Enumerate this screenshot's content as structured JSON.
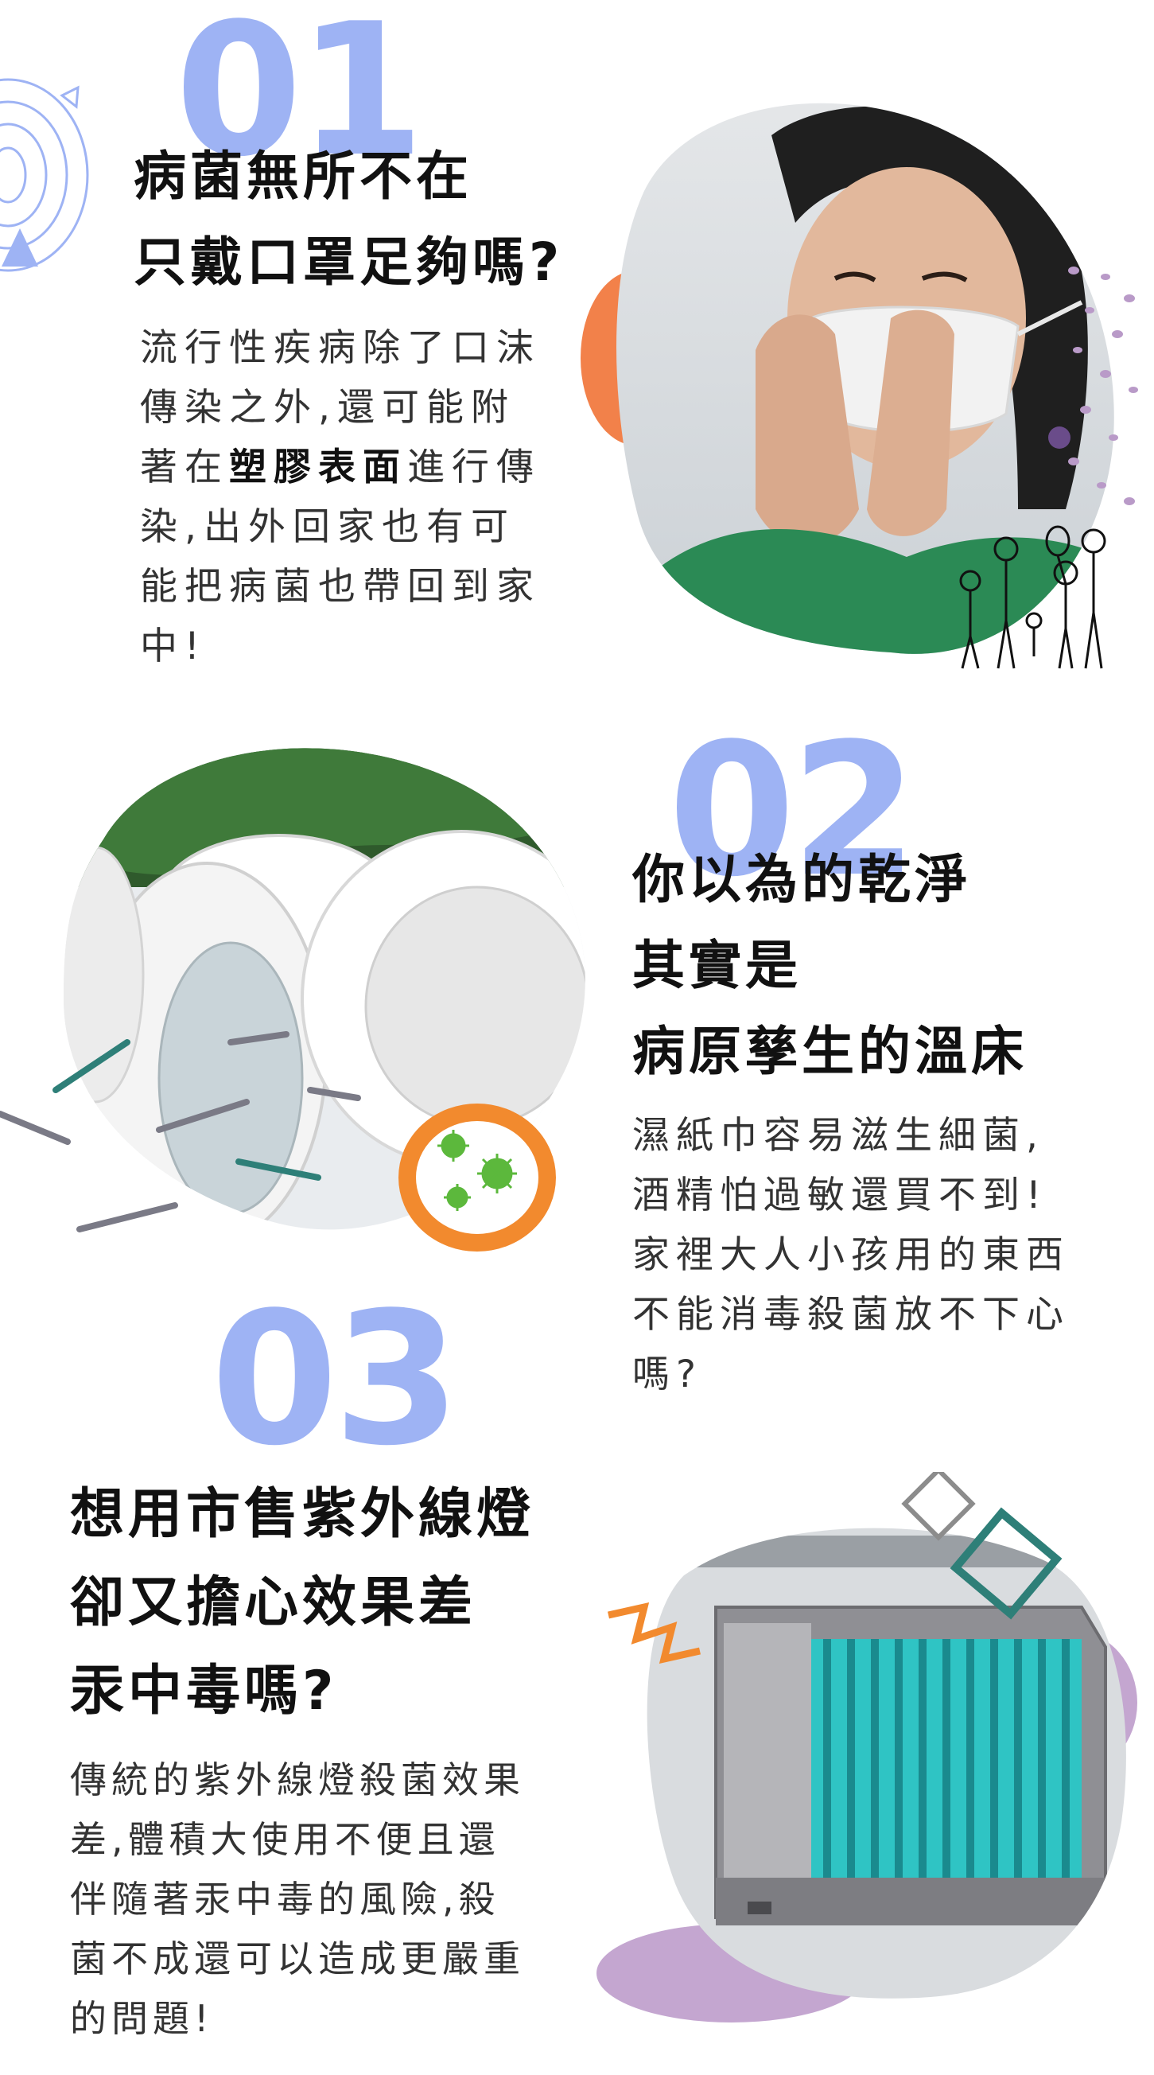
{
  "section1": {
    "number": "01",
    "heading": [
      "病菌無所不在",
      "只戴口罩足夠嗎?"
    ],
    "body": [
      {
        "t": "流行性疾病除了口沫"
      },
      {
        "t": "傳染之外,還可能附"
      },
      {
        "pre": "著在",
        "bold": "塑膠表面",
        "post": "進行傳"
      },
      {
        "t": "染,出外回家也有可"
      },
      {
        "t": "能把病菌也帶回到家"
      },
      {
        "t": "中!"
      }
    ]
  },
  "section2": {
    "number": "02",
    "heading": [
      "你以為的乾淨",
      "其實是",
      "病原孳生的溫床"
    ],
    "body": [
      "濕紙巾容易滋生細菌,",
      "酒精怕過敏還買不到!",
      "家裡大人小孩用的東西",
      "不能消毒殺菌放不下心",
      "嗎?"
    ]
  },
  "section3": {
    "number": "03",
    "heading": [
      "想用市售紫外線燈",
      "卻又擔心效果差",
      "汞中毒嗎?"
    ],
    "body": [
      "傳統的紫外線燈殺菌效果",
      "差,體積大使用不便且還",
      "伴隨著汞中毒的風險,殺",
      "菌不成還可以造成更嚴重",
      "的問題!"
    ]
  },
  "colors": {
    "number": "#9eb3f4",
    "accent_orange": "#f2814a",
    "accent_teal": "#2e7f78",
    "accent_purple": "#b99ac8",
    "virus_green": "#5cb83c"
  }
}
